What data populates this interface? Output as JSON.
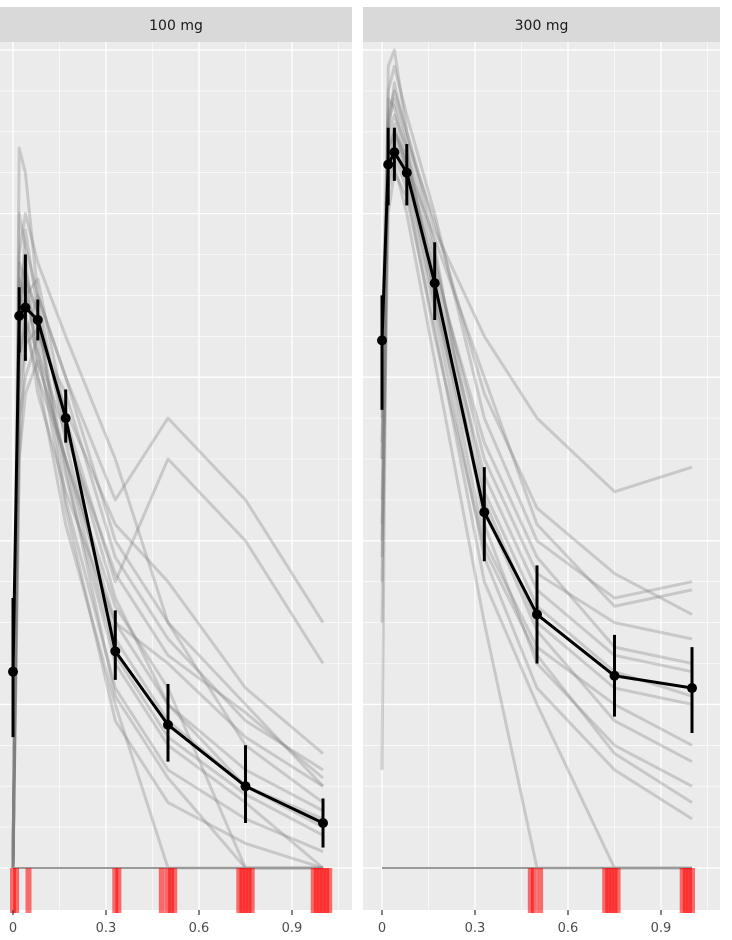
{
  "chart_data": [
    {
      "type": "line",
      "facet_label": "100 mg",
      "xlim": [
        -0.02,
        1.04
      ],
      "x_ticks": [
        0,
        0.3,
        0.6,
        0.9
      ],
      "x_tick_labels": [
        "0",
        "0.3",
        "0.6",
        "0.9"
      ],
      "grid": true,
      "mean_series": {
        "x": [
          0,
          0.02,
          0.04,
          0.08,
          0.17,
          0.33,
          0.5,
          0.75,
          1.0
        ],
        "y": [
          0.24,
          0.675,
          0.685,
          0.67,
          0.55,
          0.265,
          0.175,
          0.1,
          0.055
        ],
        "error_low": [
          0.16,
          0.63,
          0.62,
          0.645,
          0.52,
          0.23,
          0.13,
          0.055,
          0.025
        ],
        "error_high": [
          0.33,
          0.71,
          0.75,
          0.695,
          0.585,
          0.315,
          0.225,
          0.15,
          0.085
        ]
      },
      "individual_series": [
        {
          "x": [
            0,
            0.02,
            0.04,
            0.08,
            0.17,
            0.33,
            0.5,
            0.75,
            1.0
          ],
          "y": [
            0.0,
            0.88,
            0.85,
            0.7,
            0.6,
            0.4,
            0.3,
            0.2,
            0.1
          ]
        },
        {
          "x": [
            0,
            0.02,
            0.04,
            0.08,
            0.17,
            0.33,
            0.5,
            0.75,
            1.0
          ],
          "y": [
            0.0,
            0.75,
            0.8,
            0.74,
            0.65,
            0.5,
            0.3,
            0.15,
            0.08
          ]
        },
        {
          "x": [
            0,
            0.02,
            0.04,
            0.08,
            0.17,
            0.33,
            0.5,
            0.75,
            1.0
          ],
          "y": [
            0.0,
            0.6,
            0.7,
            0.72,
            0.55,
            0.35,
            0.5,
            0.4,
            0.25
          ]
        },
        {
          "x": [
            0,
            0.02,
            0.04,
            0.08,
            0.17,
            0.33,
            0.5,
            0.75,
            1.0
          ],
          "y": [
            0.0,
            0.5,
            0.65,
            0.7,
            0.6,
            0.45,
            0.55,
            0.45,
            0.3
          ]
        },
        {
          "x": [
            0,
            0.02,
            0.04,
            0.08,
            0.17,
            0.33,
            0.5,
            0.75,
            1.0
          ],
          "y": [
            0.0,
            0.7,
            0.75,
            0.6,
            0.5,
            0.3,
            0.2,
            0.1,
            0.05
          ]
        },
        {
          "x": [
            0,
            0.02,
            0.04,
            0.08,
            0.17,
            0.33,
            0.5,
            0.75,
            1.0
          ],
          "y": [
            0.0,
            0.65,
            0.78,
            0.68,
            0.45,
            0.22,
            0.12,
            0.06,
            0.02
          ]
        },
        {
          "x": [
            0,
            0.02,
            0.04,
            0.08,
            0.17,
            0.33,
            0.5,
            0.75,
            1.0
          ],
          "y": [
            0.0,
            0.72,
            0.7,
            0.66,
            0.48,
            0.25,
            0.15,
            0.08,
            0.0
          ]
        },
        {
          "x": [
            0,
            0.02,
            0.04,
            0.08,
            0.17,
            0.33,
            0.5,
            0.75,
            1.0
          ],
          "y": [
            0.0,
            0.55,
            0.6,
            0.65,
            0.58,
            0.38,
            0.28,
            0.18,
            0.12
          ]
        },
        {
          "x": [
            0,
            0.02,
            0.04,
            0.08,
            0.17,
            0.33,
            0.5,
            0.75,
            1.0
          ],
          "y": [
            0.0,
            0.68,
            0.72,
            0.62,
            0.5,
            0.32,
            0.22,
            0.0,
            0.0
          ]
        },
        {
          "x": [
            0,
            0.02,
            0.04,
            0.08,
            0.17,
            0.33,
            0.5,
            0.75,
            1.0
          ],
          "y": [
            0.0,
            0.8,
            0.76,
            0.7,
            0.52,
            0.28,
            0.18,
            0.1,
            0.06
          ]
        },
        {
          "x": [
            0,
            0.02,
            0.04,
            0.08,
            0.17,
            0.33,
            0.5,
            0.75,
            1.0
          ],
          "y": [
            0.0,
            0.62,
            0.66,
            0.6,
            0.42,
            0.2,
            0.0,
            0.0,
            0.0
          ]
        },
        {
          "x": [
            0,
            0.02,
            0.04,
            0.08,
            0.17,
            0.33,
            0.5,
            0.75,
            1.0
          ],
          "y": [
            0.0,
            0.7,
            0.68,
            0.58,
            0.46,
            0.3,
            0.25,
            0.16,
            0.1
          ]
        },
        {
          "x": [
            0,
            0.02,
            0.04,
            0.08,
            0.17,
            0.33,
            0.5,
            0.75,
            1.0
          ],
          "y": [
            0.0,
            0.58,
            0.64,
            0.66,
            0.56,
            0.42,
            0.35,
            0.22,
            0.14
          ]
        },
        {
          "x": [
            0,
            0.02,
            0.04,
            0.08,
            0.17,
            0.33,
            0.5,
            0.75,
            1.0
          ],
          "y": [
            0.0,
            0.66,
            0.7,
            0.64,
            0.44,
            0.18,
            0.08,
            0.03,
            0.0
          ]
        },
        {
          "x": [
            0,
            0.02,
            0.04,
            0.08,
            0.17,
            0.33,
            0.5,
            0.75,
            1.0
          ],
          "y": [
            0.0,
            0.74,
            0.72,
            0.68,
            0.54,
            0.33,
            0.2,
            0.12,
            0.07
          ]
        },
        {
          "x": [
            0,
            0.02,
            0.04,
            0.08,
            0.17,
            0.33,
            0.5,
            0.75,
            1.0
          ],
          "y": [
            0.0,
            0.5,
            0.58,
            0.62,
            0.5,
            0.26,
            0.16,
            0.09,
            0.04
          ]
        },
        {
          "x": [
            0,
            0.02,
            0.04,
            0.08,
            0.17,
            0.33,
            0.5,
            0.75,
            1.0
          ],
          "y": [
            0.0,
            0.69,
            0.73,
            0.67,
            0.49,
            0.21,
            0.11,
            0.0,
            0.0
          ]
        },
        {
          "x": [
            0,
            0.02,
            0.04,
            0.08,
            0.17,
            0.33,
            0.5,
            0.75,
            1.0
          ],
          "y": [
            0.0,
            0.63,
            0.67,
            0.63,
            0.53,
            0.36,
            0.26,
            0.19,
            0.11
          ]
        }
      ],
      "blq_rug": {
        "color": "#ff0000",
        "x": [
          0,
          0.01,
          0.05,
          0.33,
          0.34,
          0.48,
          0.5,
          0.51,
          0.52,
          0.73,
          0.74,
          0.75,
          0.76,
          0.77,
          0.97,
          0.98,
          0.99,
          1.0,
          1.01,
          1.02
        ]
      }
    },
    {
      "type": "line",
      "facet_label": "300 mg",
      "xlim": [
        -0.02,
        1.04
      ],
      "x_ticks": [
        0,
        0.3,
        0.6,
        0.9
      ],
      "x_tick_labels": [
        "0",
        "0.3",
        "0.6",
        "0.9"
      ],
      "grid": true,
      "mean_series": {
        "x": [
          0,
          0.02,
          0.04,
          0.08,
          0.17,
          0.33,
          0.5,
          0.75,
          1.0
        ],
        "y": [
          0.645,
          0.86,
          0.875,
          0.85,
          0.715,
          0.435,
          0.31,
          0.235,
          0.22
        ],
        "error_low": [
          0.56,
          0.81,
          0.84,
          0.81,
          0.67,
          0.375,
          0.25,
          0.185,
          0.165
        ],
        "error_high": [
          0.7,
          0.905,
          0.905,
          0.885,
          0.765,
          0.49,
          0.37,
          0.285,
          0.27
        ]
      },
      "individual_series": [
        {
          "x": [
            0,
            0.02,
            0.04,
            0.08,
            0.17,
            0.33,
            0.5,
            0.75,
            1.0
          ],
          "y": [
            0.12,
            0.98,
            1.0,
            0.9,
            0.78,
            0.65,
            0.55,
            0.46,
            0.49
          ]
        },
        {
          "x": [
            0,
            0.02,
            0.04,
            0.08,
            0.17,
            0.33,
            0.5,
            0.75,
            1.0
          ],
          "y": [
            0.3,
            0.95,
            0.98,
            0.92,
            0.8,
            0.55,
            0.4,
            0.33,
            0.35
          ]
        },
        {
          "x": [
            0,
            0.02,
            0.04,
            0.08,
            0.17,
            0.33,
            0.5,
            0.75,
            1.0
          ],
          "y": [
            0.5,
            0.9,
            0.92,
            0.88,
            0.7,
            0.45,
            0.3,
            0.22,
            0.2
          ]
        },
        {
          "x": [
            0,
            0.02,
            0.04,
            0.08,
            0.17,
            0.33,
            0.5,
            0.75,
            1.0
          ],
          "y": [
            0.4,
            0.88,
            0.9,
            0.86,
            0.74,
            0.5,
            0.36,
            0.3,
            0.28
          ]
        },
        {
          "x": [
            0,
            0.02,
            0.04,
            0.08,
            0.17,
            0.33,
            0.5,
            0.75,
            1.0
          ],
          "y": [
            0.6,
            0.92,
            0.95,
            0.9,
            0.76,
            0.42,
            0.25,
            0.15,
            0.1
          ]
        },
        {
          "x": [
            0,
            0.02,
            0.04,
            0.08,
            0.17,
            0.33,
            0.5,
            0.75,
            1.0
          ],
          "y": [
            0.55,
            0.85,
            0.88,
            0.84,
            0.68,
            0.38,
            0.22,
            0.12,
            0.06
          ]
        },
        {
          "x": [
            0,
            0.02,
            0.04,
            0.08,
            0.17,
            0.33,
            0.5,
            0.75,
            1.0
          ],
          "y": [
            0.45,
            0.87,
            0.9,
            0.87,
            0.72,
            0.48,
            0.34,
            0.26,
            0.24
          ]
        },
        {
          "x": [
            0,
            0.02,
            0.04,
            0.08,
            0.17,
            0.33,
            0.5,
            0.75,
            1.0
          ],
          "y": [
            0.35,
            0.8,
            0.85,
            0.82,
            0.66,
            0.35,
            0.2,
            0.0,
            0.0
          ]
        },
        {
          "x": [
            0,
            0.02,
            0.04,
            0.08,
            0.17,
            0.33,
            0.5,
            0.75,
            1.0
          ],
          "y": [
            0.5,
            0.9,
            0.96,
            0.89,
            0.79,
            0.58,
            0.44,
            0.36,
            0.31
          ]
        },
        {
          "x": [
            0,
            0.02,
            0.04,
            0.08,
            0.17,
            0.33,
            0.5,
            0.75,
            1.0
          ],
          "y": [
            0.65,
            0.94,
            0.93,
            0.86,
            0.7,
            0.4,
            0.27,
            0.2,
            0.15
          ]
        },
        {
          "x": [
            0,
            0.02,
            0.04,
            0.08,
            0.17,
            0.33,
            0.5,
            0.75,
            1.0
          ],
          "y": [
            0.58,
            0.83,
            0.86,
            0.8,
            0.62,
            0.3,
            0.0,
            0.0,
            0.0
          ]
        },
        {
          "x": [
            0,
            0.02,
            0.04,
            0.08,
            0.17,
            0.33,
            0.5,
            0.75,
            1.0
          ],
          "y": [
            0.62,
            0.89,
            0.91,
            0.85,
            0.73,
            0.52,
            0.38,
            0.27,
            0.25
          ]
        },
        {
          "x": [
            0,
            0.02,
            0.04,
            0.08,
            0.17,
            0.33,
            0.5,
            0.75,
            1.0
          ],
          "y": [
            0.42,
            0.86,
            0.89,
            0.85,
            0.69,
            0.44,
            0.29,
            0.18,
            0.13
          ]
        },
        {
          "x": [
            0,
            0.02,
            0.04,
            0.08,
            0.17,
            0.33,
            0.5,
            0.75,
            1.0
          ],
          "y": [
            0.52,
            0.91,
            0.94,
            0.88,
            0.75,
            0.46,
            0.32,
            0.24,
            0.21
          ]
        },
        {
          "x": [
            0,
            0.02,
            0.04,
            0.08,
            0.17,
            0.33,
            0.5,
            0.75,
            1.0
          ],
          "y": [
            0.38,
            0.84,
            0.87,
            0.83,
            0.65,
            0.39,
            0.26,
            0.14,
            0.08
          ]
        },
        {
          "x": [
            0,
            0.02,
            0.04,
            0.08,
            0.17,
            0.33,
            0.5,
            0.75,
            1.0
          ],
          "y": [
            0.6,
            0.88,
            0.9,
            0.86,
            0.77,
            0.6,
            0.42,
            0.32,
            0.34
          ]
        }
      ],
      "blq_rug": {
        "color": "#ff0000",
        "x": [
          0.48,
          0.49,
          0.51,
          0.72,
          0.73,
          0.74,
          0.75,
          0.76,
          0.97,
          0.98,
          0.99,
          1.0
        ]
      }
    }
  ]
}
